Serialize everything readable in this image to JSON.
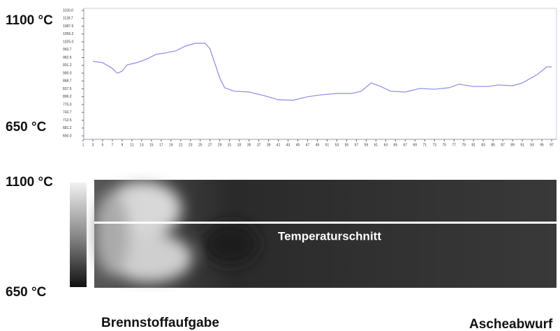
{
  "chart_data": {
    "type": "line",
    "color": "#8a8ae6",
    "x": [
      3,
      5,
      7,
      8,
      9,
      10,
      12,
      14,
      16,
      18,
      20,
      22,
      24,
      26,
      27,
      29,
      30,
      32,
      35,
      38,
      41,
      44,
      47,
      50,
      53,
      56,
      58,
      60,
      62,
      64,
      67,
      70,
      73,
      76,
      78,
      81,
      84,
      86,
      89,
      91,
      94,
      96,
      97
    ],
    "values": [
      947,
      942,
      919,
      900,
      908,
      933,
      942,
      956,
      975,
      981,
      989,
      1008,
      1019,
      1019,
      997,
      881,
      842,
      828,
      825,
      811,
      794,
      792,
      806,
      814,
      819,
      819,
      828,
      861,
      847,
      828,
      825,
      839,
      836,
      842,
      856,
      847,
      847,
      853,
      850,
      861,
      894,
      925,
      925
    ],
    "xlim": [
      0,
      98
    ],
    "xticks": [
      1,
      3,
      5,
      7,
      9,
      11,
      13,
      15,
      17,
      19,
      21,
      23,
      25,
      27,
      29,
      31,
      33,
      35,
      37,
      39,
      41,
      43,
      45,
      47,
      49,
      51,
      53,
      55,
      57,
      59,
      61,
      63,
      65,
      67,
      69,
      71,
      73,
      75,
      77,
      79,
      81,
      83,
      85,
      87,
      89,
      91,
      93,
      95,
      97
    ],
    "ylim": [
      650,
      1150
    ],
    "yticks": [
      {
        "value": 650,
        "label": "650.0"
      },
      {
        "value": 681.25,
        "label": "681.2"
      },
      {
        "value": 712.5,
        "label": "712.5"
      },
      {
        "value": 743.75,
        "label": "743.7"
      },
      {
        "value": 775,
        "label": "775.0"
      },
      {
        "value": 806.25,
        "label": "806.2"
      },
      {
        "value": 837.5,
        "label": "837.5"
      },
      {
        "value": 868.75,
        "label": "868.7"
      },
      {
        "value": 900,
        "label": "900.0"
      },
      {
        "value": 931.25,
        "label": "931.2"
      },
      {
        "value": 962.5,
        "label": "962.5"
      },
      {
        "value": 993.75,
        "label": "993.7"
      },
      {
        "value": 1025,
        "label": "1025.0"
      },
      {
        "value": 1056.25,
        "label": "1056.2"
      },
      {
        "value": 1087.5,
        "label": "1087.5"
      },
      {
        "value": 1118.75,
        "label": "1118.7"
      },
      {
        "value": 1150,
        "label": "1150.0"
      }
    ]
  },
  "chart_scale": {
    "top": "1100 °C",
    "bottom": "650 °C"
  },
  "thermal_image": {
    "scale_top": "1100 °C",
    "scale_bottom": "650 °C",
    "section_label": "Temperaturschnitt",
    "left_label": "Brennstoffaufgabe",
    "right_label": "Ascheabwurf"
  }
}
